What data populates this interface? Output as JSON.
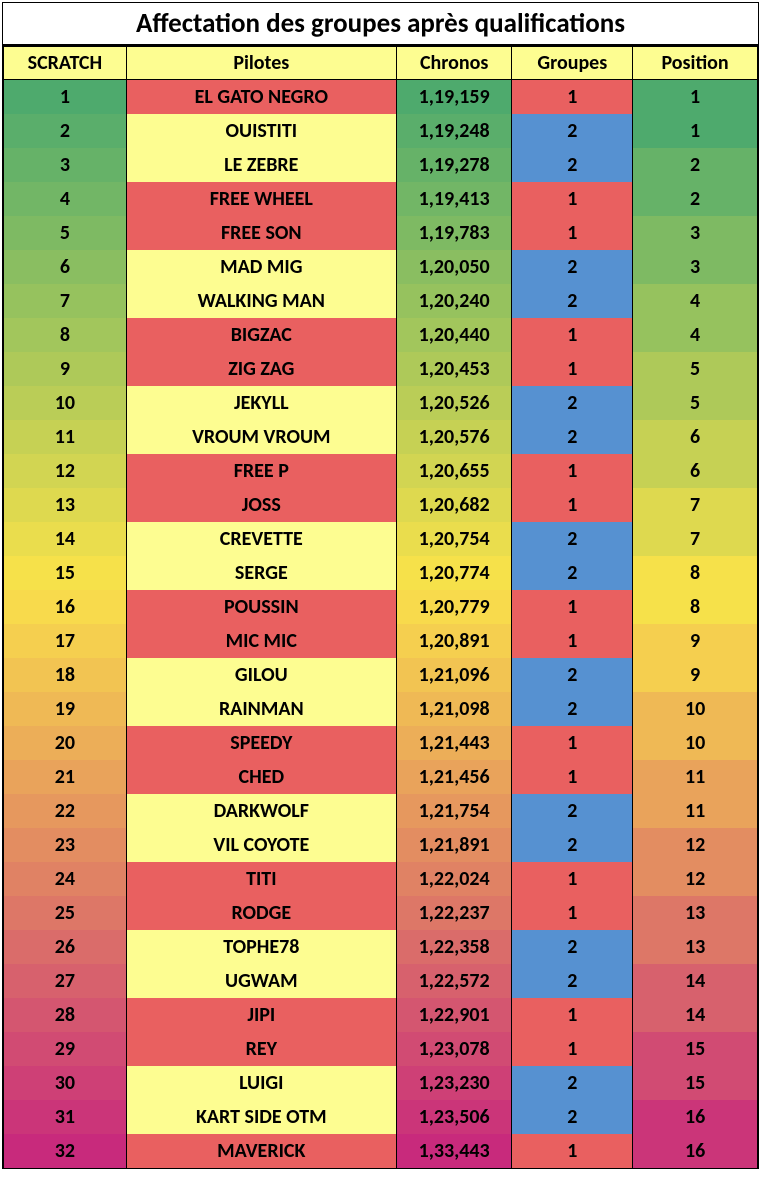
{
  "title": "Affectation des groupes après qualifications",
  "header_bg": "#fdfd91",
  "columns": [
    {
      "label": "SCRATCH",
      "class": "col-scratch"
    },
    {
      "label": "Pilotes",
      "class": "col-pilotes"
    },
    {
      "label": "Chronos",
      "class": "col-chronos"
    },
    {
      "label": "Groupes",
      "class": "col-groupes"
    },
    {
      "label": "Position",
      "class": "col-position"
    }
  ],
  "group_colors": {
    "1": "#e96060",
    "2": "#5691d1"
  },
  "pilote_colors": {
    "1": "#e96060",
    "2": "#fdfd91"
  },
  "scratch_gradient": [
    "#4eaa6d",
    "#5aae6b",
    "#66b268",
    "#72b666",
    "#7eba63",
    "#8abe61",
    "#96c25e",
    "#a2c65c",
    "#aec959",
    "#bacd57",
    "#c6d154",
    "#d2d552",
    "#ded94f",
    "#eadd4d",
    "#f6e14a",
    "#f8da4c",
    "#f5cf4f",
    "#f2c452",
    "#efb955",
    "#ecae58",
    "#e9a35b",
    "#e6985e",
    "#e38d61",
    "#e08264",
    "#dd7767",
    "#da6c6a",
    "#d7616d",
    "#d45670",
    "#d14b73",
    "#ce4076",
    "#cb3579",
    "#c82a7c"
  ],
  "position_gradient": [
    "#4eaa6d",
    "#66b268",
    "#7eba63",
    "#96c25e",
    "#aec959",
    "#c6d154",
    "#ded94f",
    "#f6e14a",
    "#f5cf4f",
    "#efb955",
    "#e9a35b",
    "#e38d61",
    "#dd7767",
    "#d7616d",
    "#d14b73",
    "#cb3579"
  ],
  "rows": [
    {
      "scratch": "1",
      "pilote": "EL GATO NEGRO",
      "chrono": "1,19,159",
      "groupe": "1",
      "position": "1"
    },
    {
      "scratch": "2",
      "pilote": "OUISTITI",
      "chrono": "1,19,248",
      "groupe": "2",
      "position": "1"
    },
    {
      "scratch": "3",
      "pilote": "LE ZEBRE",
      "chrono": "1,19,278",
      "groupe": "2",
      "position": "2"
    },
    {
      "scratch": "4",
      "pilote": "FREE WHEEL",
      "chrono": "1,19,413",
      "groupe": "1",
      "position": "2"
    },
    {
      "scratch": "5",
      "pilote": "FREE SON",
      "chrono": "1,19,783",
      "groupe": "1",
      "position": "3"
    },
    {
      "scratch": "6",
      "pilote": "MAD MIG",
      "chrono": "1,20,050",
      "groupe": "2",
      "position": "3"
    },
    {
      "scratch": "7",
      "pilote": "WALKING MAN",
      "chrono": "1,20,240",
      "groupe": "2",
      "position": "4"
    },
    {
      "scratch": "8",
      "pilote": "BIGZAC",
      "chrono": "1,20,440",
      "groupe": "1",
      "position": "4"
    },
    {
      "scratch": "9",
      "pilote": "ZIG ZAG",
      "chrono": "1,20,453",
      "groupe": "1",
      "position": "5"
    },
    {
      "scratch": "10",
      "pilote": "JEKYLL",
      "chrono": "1,20,526",
      "groupe": "2",
      "position": "5"
    },
    {
      "scratch": "11",
      "pilote": "VROUM VROUM",
      "chrono": "1,20,576",
      "groupe": "2",
      "position": "6"
    },
    {
      "scratch": "12",
      "pilote": "FREE P",
      "chrono": "1,20,655",
      "groupe": "1",
      "position": "6"
    },
    {
      "scratch": "13",
      "pilote": "JOSS",
      "chrono": "1,20,682",
      "groupe": "1",
      "position": "7"
    },
    {
      "scratch": "14",
      "pilote": "CREVETTE",
      "chrono": "1,20,754",
      "groupe": "2",
      "position": "7"
    },
    {
      "scratch": "15",
      "pilote": "SERGE",
      "chrono": "1,20,774",
      "groupe": "2",
      "position": "8"
    },
    {
      "scratch": "16",
      "pilote": "POUSSIN",
      "chrono": "1,20,779",
      "groupe": "1",
      "position": "8"
    },
    {
      "scratch": "17",
      "pilote": "MIC MIC",
      "chrono": "1,20,891",
      "groupe": "1",
      "position": "9"
    },
    {
      "scratch": "18",
      "pilote": "GILOU",
      "chrono": "1,21,096",
      "groupe": "2",
      "position": "9"
    },
    {
      "scratch": "19",
      "pilote": "RAINMAN",
      "chrono": "1,21,098",
      "groupe": "2",
      "position": "10"
    },
    {
      "scratch": "20",
      "pilote": "SPEEDY",
      "chrono": "1,21,443",
      "groupe": "1",
      "position": "10"
    },
    {
      "scratch": "21",
      "pilote": "CHED",
      "chrono": "1,21,456",
      "groupe": "1",
      "position": "11"
    },
    {
      "scratch": "22",
      "pilote": "DARKWOLF",
      "chrono": "1,21,754",
      "groupe": "2",
      "position": "11"
    },
    {
      "scratch": "23",
      "pilote": "VIL COYOTE",
      "chrono": "1,21,891",
      "groupe": "2",
      "position": "12"
    },
    {
      "scratch": "24",
      "pilote": "TITI",
      "chrono": "1,22,024",
      "groupe": "1",
      "position": "12"
    },
    {
      "scratch": "25",
      "pilote": "RODGE",
      "chrono": "1,22,237",
      "groupe": "1",
      "position": "13"
    },
    {
      "scratch": "26",
      "pilote": "TOPHE78",
      "chrono": "1,22,358",
      "groupe": "2",
      "position": "13"
    },
    {
      "scratch": "27",
      "pilote": "UGWAM",
      "chrono": "1,22,572",
      "groupe": "2",
      "position": "14"
    },
    {
      "scratch": "28",
      "pilote": "JIPI",
      "chrono": "1,22,901",
      "groupe": "1",
      "position": "14"
    },
    {
      "scratch": "29",
      "pilote": "REY",
      "chrono": "1,23,078",
      "groupe": "1",
      "position": "15"
    },
    {
      "scratch": "30",
      "pilote": "LUIGI",
      "chrono": "1,23,230",
      "groupe": "2",
      "position": "15"
    },
    {
      "scratch": "31",
      "pilote": "KART SIDE OTM",
      "chrono": "1,23,506",
      "groupe": "2",
      "position": "16"
    },
    {
      "scratch": "32",
      "pilote": "MAVERICK",
      "chrono": "1,33,443",
      "groupe": "1",
      "position": "16"
    }
  ]
}
